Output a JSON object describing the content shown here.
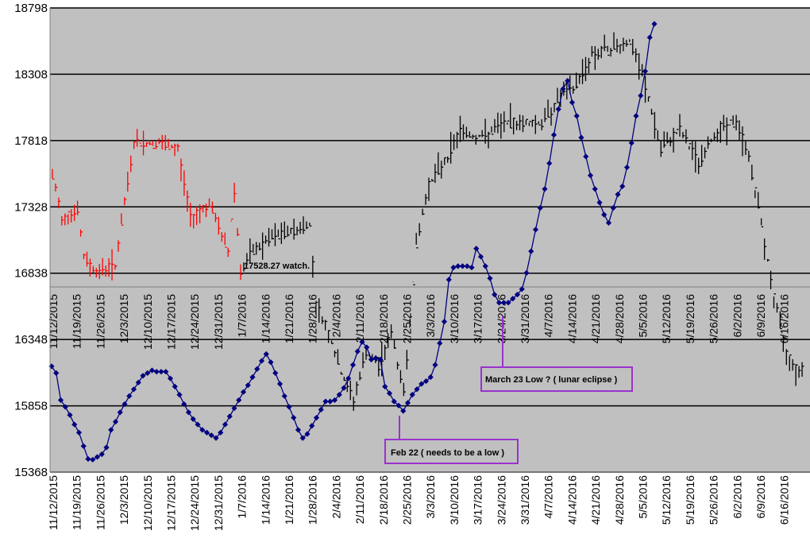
{
  "chart_data": {
    "type": "line",
    "title": "",
    "xlabel": "",
    "ylabel": "",
    "ylim": [
      15368,
      18798
    ],
    "y_ticks": [
      "15368",
      "15858",
      "16348",
      "16838",
      "17328",
      "17818",
      "18308",
      "18798"
    ],
    "x_tick_labels": [
      "11/12/2015",
      "11/19/2015",
      "11/26/2015",
      "12/3/2015",
      "12/10/2015",
      "12/17/2015",
      "12/24/2015",
      "12/31/2015",
      "1/7/2016",
      "1/14/2016",
      "1/21/2016",
      "1/28/2016",
      "2/4/2016",
      "2/11/2016",
      "2/18/2016",
      "2/25/2016",
      "3/3/2016",
      "3/10/2016",
      "3/17/2016",
      "3/24/2016",
      "3/31/2016",
      "4/7/2016",
      "4/14/2016",
      "4/21/2016",
      "4/28/2016",
      "5/5/2016",
      "5/12/2016",
      "5/19/2016",
      "5/26/2016",
      "6/2/2016",
      "6/9/2016",
      "6/16/2016"
    ],
    "inplot_labels": [
      "11/12/2015",
      "11/19/2015",
      "11/26/2015",
      "12/3/2015",
      "12/10/2015",
      "12/17/2015",
      "12/24/2015",
      "12/31/2015",
      "1/7/2016",
      "1/14/2016",
      "1/21/2016",
      "1/28/2016",
      "2/4/2016",
      "2/11/2016",
      "2/18/2016",
      "2/25/2016",
      "3/3/2016",
      "3/10/2016",
      "3/17/2016",
      "3/24/2016",
      "3/31/2016",
      "4/7/2016",
      "4/14/2016",
      "4/21/2016",
      "4/28/2016",
      "5/5/2016",
      "5/12/2016",
      "5/19/2016",
      "5/26/2016",
      "6/2/2016",
      "6/9/2016",
      "6/16/2016"
    ],
    "grid": "horizontal",
    "reference_line": 16760,
    "colors": {
      "plot_bg": "#c0c0c0",
      "cycle_line": "#000080",
      "price_bars_2015": "#ff0000",
      "price_bars_2016": "#000000",
      "annotation_border": "#9933cc",
      "ref_line": "#808080"
    },
    "series": [
      {
        "type": "line-markers",
        "values": [
          16150,
          16100,
          15900,
          15850,
          15790,
          15720,
          15660,
          15560,
          15465,
          15460,
          15480,
          15500,
          15550,
          15680,
          15740,
          15810,
          15870,
          15930,
          15980,
          16030,
          16080,
          16100,
          16120,
          16110,
          16110,
          16110,
          16060,
          16000,
          15940,
          15870,
          15810,
          15760,
          15720,
          15680,
          15660,
          15640,
          15620,
          15660,
          15720,
          15780,
          15840,
          15900,
          15960,
          16010,
          16070,
          16130,
          16190,
          16240,
          16180,
          16100,
          16020,
          15930,
          15850,
          15770,
          15680,
          15620,
          15650,
          15710,
          15770,
          15830,
          15890,
          15890,
          15900,
          15940,
          15990,
          16060,
          16160,
          16260,
          16330,
          16290,
          16200,
          16210,
          16200,
          16000,
          15950,
          15890,
          15860,
          15820,
          15880,
          15940,
          15980,
          16020,
          16040,
          16070,
          16160,
          16320,
          16480,
          16790,
          16880,
          16890,
          16890,
          16890,
          16880,
          17020,
          16960,
          16890,
          16800,
          16680,
          16620,
          16620,
          16620,
          16650,
          16680,
          16720,
          16840,
          17000,
          17160,
          17320,
          17460,
          17650,
          17860,
          18050,
          18200,
          18260,
          18100,
          18000,
          17840,
          17700,
          17560,
          17460,
          17360,
          17270,
          17210,
          17320,
          17420,
          17480,
          17620,
          17800,
          18000,
          18150,
          18330,
          18580,
          18680
        ]
      }
    ]
  },
  "annotations": {
    "watch": "17528.27 watch.",
    "march23": "March 23 Low ? ( lunar eclipse )",
    "feb22": "Feb 22 ( needs to be a low )"
  }
}
